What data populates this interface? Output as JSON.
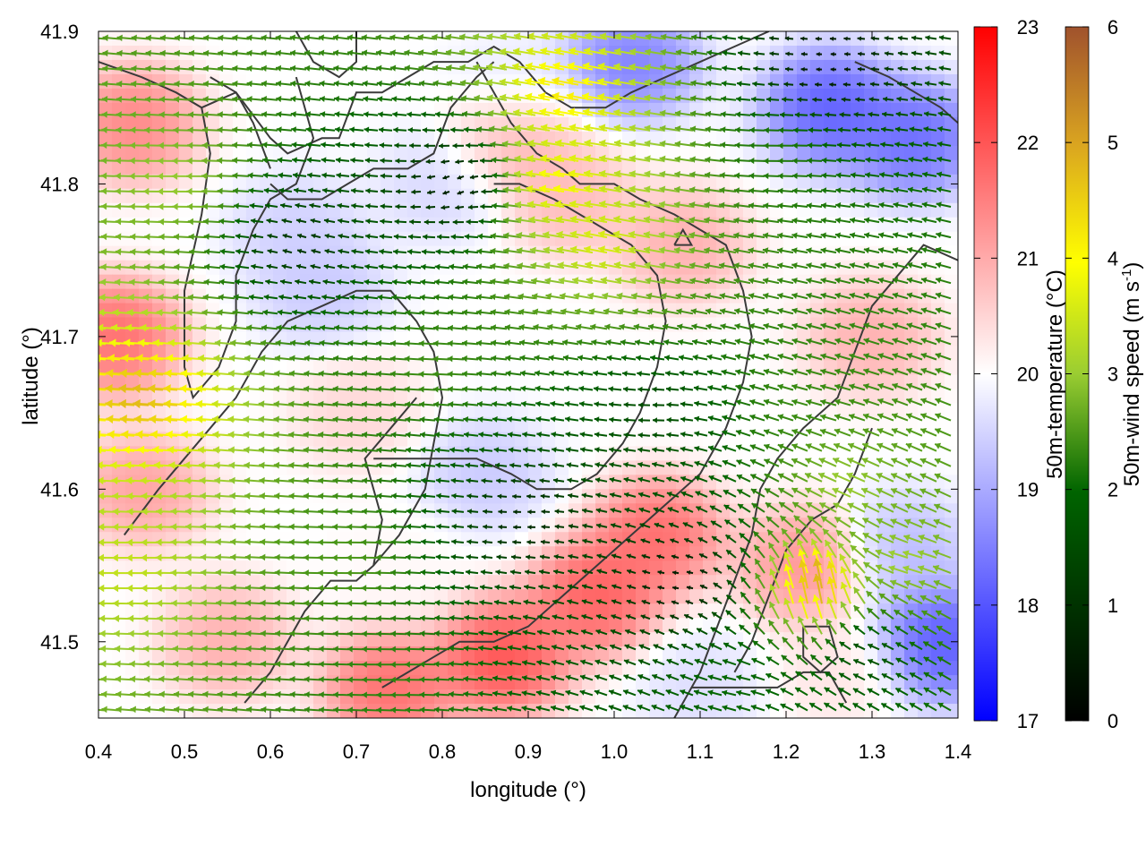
{
  "chart_data": {
    "type": "heatmap",
    "description_fields": "vector field of 50m wind over 50m temperature map with terrain contours",
    "xlabel": "longitude (°)",
    "ylabel": "latitude (°)",
    "xlim": [
      0.4,
      1.4
    ],
    "ylim": [
      41.45,
      41.9
    ],
    "xticks": [
      "0.4",
      "0.5",
      "0.6",
      "0.7",
      "0.8",
      "0.9",
      "1.0",
      "1.1",
      "1.2",
      "1.3",
      "1.4"
    ],
    "yticks": [
      "41.5",
      "41.6",
      "41.7",
      "41.8",
      "41.9"
    ],
    "temperature_colorbar": {
      "label": "50m-temperature (°C)",
      "range": [
        17,
        23
      ],
      "ticks": [
        "17",
        "18",
        "19",
        "20",
        "21",
        "22",
        "23"
      ],
      "colors": [
        "#0000ff",
        "#ffffff",
        "#ff0000"
      ]
    },
    "wind_colorbar": {
      "label": "50m-wind speed (m s-1)",
      "label_main": "50m-wind speed (m s",
      "label_sup": "-1",
      "label_end": ")",
      "range": [
        0,
        6
      ],
      "ticks": [
        "0",
        "1",
        "2",
        "3",
        "4",
        "5",
        "6"
      ],
      "colors": [
        "#000000",
        "#006400",
        "#9acd32",
        "#ffff00",
        "#daa520",
        "#a0522d"
      ]
    },
    "temperature_anomalies": [
      {
        "lon": 0.44,
        "lat": 41.84,
        "temp": 21.8
      },
      {
        "lon": 0.42,
        "lat": 41.7,
        "temp": 22.2
      },
      {
        "lon": 0.45,
        "lat": 41.6,
        "temp": 21.4
      },
      {
        "lon": 0.63,
        "lat": 41.77,
        "temp": 19.3
      },
      {
        "lon": 0.66,
        "lat": 41.73,
        "temp": 19.2
      },
      {
        "lon": 0.8,
        "lat": 41.8,
        "temp": 19.4
      },
      {
        "lon": 0.88,
        "lat": 41.86,
        "temp": 19.6
      },
      {
        "lon": 0.88,
        "lat": 41.83,
        "temp": 21.3
      },
      {
        "lon": 1.02,
        "lat": 41.88,
        "temp": 18.1
      },
      {
        "lon": 1.25,
        "lat": 41.85,
        "temp": 17.6
      },
      {
        "lon": 1.35,
        "lat": 41.83,
        "temp": 17.8
      },
      {
        "lon": 0.95,
        "lat": 41.79,
        "temp": 21.0
      },
      {
        "lon": 1.08,
        "lat": 41.76,
        "temp": 21.2
      },
      {
        "lon": 1.3,
        "lat": 41.7,
        "temp": 21.2
      },
      {
        "lon": 0.85,
        "lat": 41.61,
        "temp": 19.2
      },
      {
        "lon": 0.75,
        "lat": 41.55,
        "temp": 20.1
      },
      {
        "lon": 1.05,
        "lat": 41.57,
        "temp": 22.2
      },
      {
        "lon": 0.98,
        "lat": 41.53,
        "temp": 22.4
      },
      {
        "lon": 0.87,
        "lat": 41.49,
        "temp": 22.6
      },
      {
        "lon": 0.74,
        "lat": 41.47,
        "temp": 22.2
      },
      {
        "lon": 1.22,
        "lat": 41.55,
        "temp": 21.6
      },
      {
        "lon": 1.38,
        "lat": 41.5,
        "temp": 17.5
      },
      {
        "lon": 1.34,
        "lat": 41.56,
        "temp": 19.0
      },
      {
        "lon": 1.1,
        "lat": 41.47,
        "temp": 19.5
      },
      {
        "lon": 1.26,
        "lat": 41.48,
        "temp": 20.4
      },
      {
        "lon": 0.55,
        "lat": 41.5,
        "temp": 21.2
      },
      {
        "lon": 0.7,
        "lat": 41.65,
        "temp": 20.6
      }
    ],
    "wind_regions": [
      {
        "lon": 0.5,
        "lat": 41.8,
        "u": -3.0,
        "v": 0.0
      },
      {
        "lon": 0.47,
        "lat": 41.66,
        "u": -4.8,
        "v": 0.3
      },
      {
        "lon": 0.45,
        "lat": 41.55,
        "u": -3.4,
        "v": 0.0
      },
      {
        "lon": 0.64,
        "lat": 41.76,
        "u": -1.0,
        "v": 0.3
      },
      {
        "lon": 0.82,
        "lat": 41.8,
        "u": -0.5,
        "v": -0.3
      },
      {
        "lon": 0.95,
        "lat": 41.8,
        "u": -4.0,
        "v": 0.6
      },
      {
        "lon": 1.0,
        "lat": 41.76,
        "u": -3.6,
        "v": 0.7
      },
      {
        "lon": 0.96,
        "lat": 41.86,
        "u": -4.2,
        "v": 0.8
      },
      {
        "lon": 1.2,
        "lat": 41.82,
        "u": -2.2,
        "v": 0.0
      },
      {
        "lon": 1.25,
        "lat": 41.88,
        "u": -0.4,
        "v": 0.0
      },
      {
        "lon": 0.8,
        "lat": 41.68,
        "u": -2.4,
        "v": 0.1
      },
      {
        "lon": 1.05,
        "lat": 41.65,
        "u": -1.5,
        "v": 0.0
      },
      {
        "lon": 0.9,
        "lat": 41.58,
        "u": -0.8,
        "v": 0.0
      },
      {
        "lon": 0.7,
        "lat": 41.55,
        "u": -2.5,
        "v": 0.0
      },
      {
        "lon": 0.75,
        "lat": 41.48,
        "u": -2.3,
        "v": 0.0
      },
      {
        "lon": 1.08,
        "lat": 41.54,
        "u": -0.5,
        "v": 0.0
      },
      {
        "lon": 1.25,
        "lat": 41.66,
        "u": -2.3,
        "v": 0.6
      },
      {
        "lon": 1.28,
        "lat": 41.6,
        "u": -2.8,
        "v": 1.2
      },
      {
        "lon": 1.24,
        "lat": 41.53,
        "u": -0.8,
        "v": 5.2
      },
      {
        "lon": 1.35,
        "lat": 41.55,
        "u": -3.0,
        "v": 0.8
      },
      {
        "lon": 1.3,
        "lat": 41.49,
        "u": -1.5,
        "v": 0.5
      },
      {
        "lon": 1.15,
        "lat": 41.47,
        "u": -2.0,
        "v": 0.4
      }
    ],
    "terrain_contours": [
      [
        [
          0.4,
          41.88
        ],
        [
          0.45,
          41.87
        ],
        [
          0.49,
          41.86
        ],
        [
          0.52,
          41.85
        ],
        [
          0.56,
          41.86
        ],
        [
          0.6,
          41.83
        ],
        [
          0.62,
          41.82
        ],
        [
          0.66,
          41.83
        ],
        [
          0.68,
          41.83
        ],
        [
          0.7,
          41.86
        ],
        [
          0.73,
          41.86
        ],
        [
          0.76,
          41.87
        ],
        [
          0.79,
          41.88
        ],
        [
          0.83,
          41.88
        ],
        [
          0.86,
          41.89
        ],
        [
          0.89,
          41.88
        ],
        [
          0.92,
          41.86
        ],
        [
          0.95,
          41.85
        ],
        [
          0.99,
          41.85
        ],
        [
          1.02,
          41.86
        ],
        [
          1.06,
          41.87
        ],
        [
          1.1,
          41.88
        ],
        [
          1.14,
          41.89
        ],
        [
          1.18,
          41.9
        ]
      ],
      [
        [
          0.53,
          41.87
        ],
        [
          0.56,
          41.86
        ],
        [
          0.58,
          41.84
        ],
        [
          0.6,
          41.81
        ]
      ],
      [
        [
          0.63,
          41.9
        ],
        [
          0.65,
          41.88
        ],
        [
          0.68,
          41.87
        ],
        [
          0.7,
          41.88
        ],
        [
          0.7,
          41.9
        ]
      ],
      [
        [
          0.63,
          41.87
        ],
        [
          0.65,
          41.83
        ],
        [
          0.63,
          41.8
        ],
        [
          0.6,
          41.79
        ],
        [
          0.58,
          41.77
        ],
        [
          0.56,
          41.74
        ],
        [
          0.56,
          41.71
        ],
        [
          0.54,
          41.68
        ],
        [
          0.51,
          41.66
        ],
        [
          0.5,
          41.68
        ],
        [
          0.5,
          41.73
        ],
        [
          0.52,
          41.78
        ],
        [
          0.53,
          41.82
        ],
        [
          0.52,
          41.85
        ],
        [
          0.49,
          41.86
        ]
      ],
      [
        [
          0.6,
          41.8
        ],
        [
          0.62,
          41.79
        ],
        [
          0.66,
          41.79
        ],
        [
          0.69,
          41.8
        ],
        [
          0.72,
          41.81
        ],
        [
          0.76,
          41.81
        ],
        [
          0.79,
          41.82
        ],
        [
          0.81,
          41.85
        ],
        [
          0.84,
          41.87
        ],
        [
          0.86,
          41.88
        ]
      ],
      [
        [
          0.84,
          41.88
        ],
        [
          0.86,
          41.86
        ],
        [
          0.88,
          41.84
        ],
        [
          0.91,
          41.82
        ],
        [
          0.94,
          41.81
        ],
        [
          0.96,
          41.8
        ],
        [
          1.0,
          41.8
        ],
        [
          1.03,
          41.79
        ],
        [
          1.07,
          41.78
        ],
        [
          1.1,
          41.77
        ],
        [
          1.13,
          41.76
        ],
        [
          1.15,
          41.73
        ],
        [
          1.16,
          41.7
        ],
        [
          1.15,
          41.67
        ],
        [
          1.13,
          41.64
        ],
        [
          1.1,
          41.61
        ],
        [
          1.06,
          41.59
        ],
        [
          1.02,
          41.57
        ],
        [
          0.98,
          41.55
        ],
        [
          0.94,
          41.53
        ],
        [
          0.9,
          41.51
        ],
        [
          0.86,
          41.5
        ],
        [
          0.82,
          41.5
        ],
        [
          0.79,
          41.49
        ],
        [
          0.76,
          41.48
        ],
        [
          0.73,
          41.47
        ]
      ],
      [
        [
          0.86,
          41.8
        ],
        [
          0.89,
          41.8
        ],
        [
          0.93,
          41.79
        ],
        [
          0.96,
          41.78
        ],
        [
          0.99,
          41.77
        ],
        [
          1.02,
          41.76
        ],
        [
          1.05,
          41.74
        ],
        [
          1.06,
          41.71
        ],
        [
          1.05,
          41.68
        ],
        [
          1.03,
          41.65
        ],
        [
          1.01,
          41.63
        ],
        [
          0.98,
          41.61
        ],
        [
          0.95,
          41.6
        ],
        [
          0.91,
          41.6
        ],
        [
          0.88,
          41.61
        ],
        [
          0.84,
          41.62
        ],
        [
          0.8,
          41.62
        ],
        [
          0.76,
          41.62
        ],
        [
          0.72,
          41.62
        ]
      ],
      [
        [
          0.43,
          41.57
        ],
        [
          0.47,
          41.6
        ],
        [
          0.5,
          41.62
        ],
        [
          0.53,
          41.64
        ],
        [
          0.56,
          41.66
        ],
        [
          0.59,
          41.69
        ],
        [
          0.62,
          41.71
        ],
        [
          0.66,
          41.72
        ],
        [
          0.7,
          41.73
        ],
        [
          0.74,
          41.73
        ],
        [
          0.77,
          41.71
        ],
        [
          0.79,
          41.69
        ],
        [
          0.8,
          41.66
        ],
        [
          0.79,
          41.63
        ],
        [
          0.78,
          41.6
        ],
        [
          0.75,
          41.57
        ],
        [
          0.72,
          41.55
        ],
        [
          0.7,
          41.54
        ],
        [
          0.67,
          41.54
        ],
        [
          0.64,
          41.52
        ],
        [
          0.62,
          41.5
        ],
        [
          0.6,
          41.48
        ],
        [
          0.57,
          41.46
        ]
      ],
      [
        [
          0.72,
          41.55
        ],
        [
          0.73,
          41.58
        ],
        [
          0.72,
          41.6
        ],
        [
          0.71,
          41.62
        ],
        [
          0.74,
          41.64
        ],
        [
          0.77,
          41.66
        ]
      ],
      [
        [
          1.07,
          41.76
        ],
        [
          1.09,
          41.76
        ],
        [
          1.08,
          41.77
        ],
        [
          1.07,
          41.76
        ]
      ],
      [
        [
          1.28,
          41.88
        ],
        [
          1.32,
          41.87
        ],
        [
          1.35,
          41.86
        ],
        [
          1.38,
          41.85
        ],
        [
          1.4,
          41.84
        ]
      ],
      [
        [
          1.4,
          41.75
        ],
        [
          1.36,
          41.76
        ],
        [
          1.33,
          41.74
        ],
        [
          1.3,
          41.72
        ],
        [
          1.28,
          41.69
        ],
        [
          1.26,
          41.66
        ],
        [
          1.22,
          41.64
        ],
        [
          1.19,
          41.62
        ],
        [
          1.17,
          41.6
        ],
        [
          1.16,
          41.57
        ],
        [
          1.14,
          41.54
        ],
        [
          1.12,
          41.51
        ],
        [
          1.1,
          41.48
        ],
        [
          1.08,
          41.46
        ],
        [
          1.07,
          41.45
        ]
      ],
      [
        [
          1.3,
          41.64
        ],
        [
          1.28,
          41.61
        ],
        [
          1.26,
          41.59
        ],
        [
          1.23,
          41.58
        ],
        [
          1.2,
          41.56
        ],
        [
          1.18,
          41.53
        ],
        [
          1.16,
          41.5
        ],
        [
          1.14,
          41.48
        ]
      ],
      [
        [
          1.22,
          41.51
        ],
        [
          1.25,
          41.51
        ],
        [
          1.26,
          41.49
        ],
        [
          1.24,
          41.48
        ],
        [
          1.22,
          41.49
        ],
        [
          1.22,
          41.51
        ]
      ],
      [
        [
          1.09,
          41.47
        ],
        [
          1.14,
          41.47
        ],
        [
          1.19,
          41.47
        ],
        [
          1.22,
          41.48
        ],
        [
          1.25,
          41.48
        ],
        [
          1.27,
          41.46
        ]
      ]
    ]
  }
}
